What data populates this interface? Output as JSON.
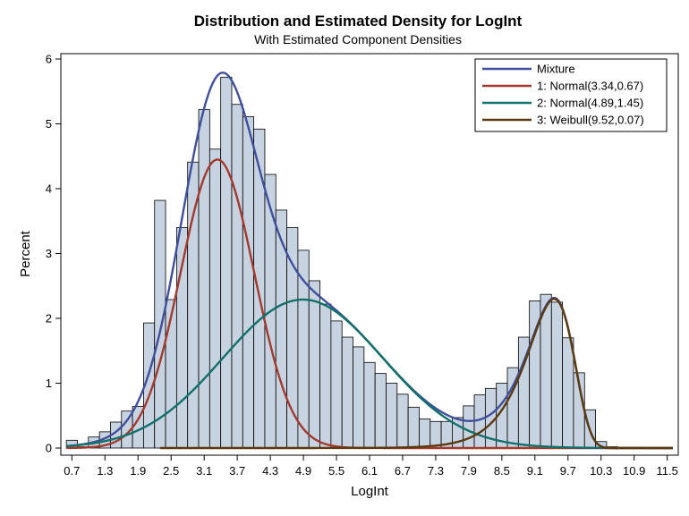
{
  "chart_data": {
    "type": "bar",
    "title": "Distribution and Estimated Density for LogInt",
    "subtitle": "With Estimated Component Densities",
    "xlabel": "LogInt",
    "ylabel": "Percent",
    "xlim": [
      0.5,
      11.7
    ],
    "ylim": [
      0,
      6.15
    ],
    "x_ticks": [
      "0.7",
      "1.3",
      "1.9",
      "2.5",
      "3.1",
      "3.7",
      "4.3",
      "4.9",
      "5.5",
      "6.1",
      "6.7",
      "7.3",
      "7.9",
      "8.5",
      "9.1",
      "9.7",
      "10.3",
      "10.9",
      "11.5"
    ],
    "y_ticks": [
      "0",
      "1",
      "2",
      "3",
      "4",
      "5",
      "6"
    ],
    "bin_width": 0.2,
    "bin_start": 0.6,
    "histogram_percent": [
      0.12,
      0.02,
      0.17,
      0.25,
      0.4,
      0.57,
      0.64,
      1.93,
      3.82,
      2.29,
      3.4,
      4.41,
      5.22,
      4.61,
      5.72,
      5.3,
      5.11,
      4.92,
      4.22,
      3.67,
      3.4,
      3.05,
      2.58,
      2.22,
      1.96,
      1.71,
      1.56,
      1.32,
      1.15,
      1.0,
      0.83,
      0.63,
      0.45,
      0.41,
      0.41,
      0.47,
      0.65,
      0.82,
      0.92,
      1.0,
      1.24,
      1.71,
      2.27,
      2.37,
      2.25,
      1.7,
      1.16,
      0.59,
      0.1,
      0.02,
      0.01,
      0.01,
      0.0,
      0.0,
      0.0
    ],
    "series": [
      {
        "name": "Mixture",
        "color": "#3f4f9b"
      },
      {
        "name": "1: Normal(3.34,0.67)",
        "color": "#a23a2e"
      },
      {
        "name": "2: Normal(4.89,1.45)",
        "color": "#12706a"
      },
      {
        "name": "3: Weibull(9.52,0.07)",
        "color": "#5b3a10"
      }
    ],
    "components": {
      "normal1": {
        "mu": 3.34,
        "sigma": 0.67,
        "peak_percent": 4.45
      },
      "normal2": {
        "mu": 4.89,
        "sigma": 1.45,
        "peak_percent": 2.29
      },
      "weibull3": {
        "mode": 9.45,
        "peak_percent": 2.3
      }
    },
    "grid": false,
    "legend_position": "top-right",
    "colors": {
      "bar_fill": "#c8d3e2",
      "bar_stroke": "#000000"
    }
  }
}
